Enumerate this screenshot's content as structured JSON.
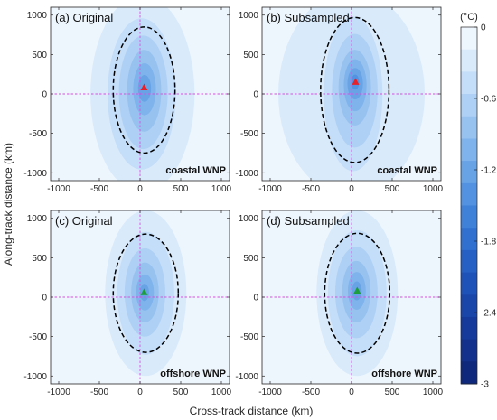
{
  "chart_data": {
    "type": "heatmap",
    "xlabel": "Cross-track distance (km)",
    "ylabel": "Along-track distance (km)",
    "xlim": [
      -1100,
      1100
    ],
    "ylim": [
      -1100,
      1100
    ],
    "xticks": [
      -1000,
      -500,
      0,
      500,
      1000
    ],
    "yticks": [
      -1000,
      -500,
      0,
      500,
      1000
    ],
    "colorbar": {
      "unit": "(°C)",
      "range": [
        -3,
        0
      ],
      "ticks": [
        0,
        -0.6,
        -1.2,
        -1.8,
        -2.4,
        -3
      ],
      "levels": [
        0,
        -0.2,
        -0.4,
        -0.6,
        -0.8,
        -1.0,
        -1.2,
        -1.4,
        -1.6,
        -1.8,
        -2.0,
        -2.2,
        -2.4,
        -2.6,
        -2.8,
        -3.0
      ],
      "colors": [
        "#eef6fd",
        "#d9eafb",
        "#c4ddf8",
        "#aed0f4",
        "#97c2f0",
        "#7fb3eb",
        "#68a3e6",
        "#5292e0",
        "#3f80d8",
        "#3170cf",
        "#2660c5",
        "#1f52b8",
        "#1a46aa",
        "#163a9b",
        "#12308c",
        "#0f287c"
      ]
    },
    "panels": [
      {
        "title": "(a) Original",
        "region": "coastal WNP",
        "center_marker": {
          "x": 50,
          "y": 80,
          "color": "#e8202a"
        },
        "contour_rings": [
          {
            "cx": 30,
            "cy": 0,
            "rx": 640,
            "ry": 1250,
            "level": -0.2
          },
          {
            "cx": 20,
            "cy": 0,
            "rx": 420,
            "ry": 960,
            "level": -0.4
          },
          {
            "cx": 40,
            "cy": 20,
            "rx": 300,
            "ry": 720,
            "level": -0.6
          },
          {
            "cx": 50,
            "cy": 40,
            "rx": 210,
            "ry": 520,
            "level": -0.8
          },
          {
            "cx": 55,
            "cy": 60,
            "rx": 140,
            "ry": 330,
            "level": -1.0
          },
          {
            "cx": 55,
            "cy": 70,
            "rx": 80,
            "ry": 170,
            "level": -1.2
          }
        ],
        "dashed_outline": {
          "cx": 50,
          "cy": 50,
          "rx": 380,
          "ry": 800
        }
      },
      {
        "title": "(b) Subsampled",
        "region": "coastal WNP",
        "center_marker": {
          "x": 50,
          "y": 150,
          "color": "#e8202a"
        },
        "contour_rings": [
          {
            "cx": 0,
            "cy": 0,
            "rx": 900,
            "ry": 1300,
            "level": -0.2
          },
          {
            "cx": 20,
            "cy": 0,
            "rx": 360,
            "ry": 980,
            "level": -0.4
          },
          {
            "cx": 40,
            "cy": 40,
            "rx": 280,
            "ry": 720,
            "level": -0.6
          },
          {
            "cx": 40,
            "cy": 80,
            "rx": 200,
            "ry": 480,
            "level": -0.8
          },
          {
            "cx": 45,
            "cy": 110,
            "rx": 140,
            "ry": 330,
            "level": -1.0
          },
          {
            "cx": 45,
            "cy": 130,
            "rx": 95,
            "ry": 200,
            "level": -1.2
          },
          {
            "cx": 45,
            "cy": 150,
            "rx": 50,
            "ry": 95,
            "level": -1.4
          }
        ],
        "dashed_outline": {
          "cx": 40,
          "cy": 50,
          "rx": 420,
          "ry": 920
        }
      },
      {
        "title": "(c) Original",
        "region": "offshore WNP",
        "center_marker": {
          "x": 50,
          "y": 60,
          "color": "#1e9e3c"
        },
        "contour_rings": [
          {
            "cx": 70,
            "cy": 50,
            "rx": 500,
            "ry": 1050,
            "level": -0.2
          },
          {
            "cx": 70,
            "cy": 50,
            "rx": 350,
            "ry": 780,
            "level": -0.4
          },
          {
            "cx": 60,
            "cy": 60,
            "rx": 250,
            "ry": 560,
            "level": -0.6
          },
          {
            "cx": 60,
            "cy": 60,
            "rx": 170,
            "ry": 380,
            "level": -0.8
          },
          {
            "cx": 60,
            "cy": 60,
            "rx": 110,
            "ry": 230,
            "level": -1.0
          },
          {
            "cx": 55,
            "cy": 60,
            "rx": 55,
            "ry": 110,
            "level": -1.2
          }
        ],
        "dashed_outline": {
          "cx": 70,
          "cy": 50,
          "rx": 400,
          "ry": 750
        }
      },
      {
        "title": "(d) Subsampled",
        "region": "offshore WNP",
        "center_marker": {
          "x": 70,
          "y": 80,
          "color": "#1e9e3c"
        },
        "contour_rings": [
          {
            "cx": 70,
            "cy": 50,
            "rx": 500,
            "ry": 1050,
            "level": -0.2
          },
          {
            "cx": 70,
            "cy": 50,
            "rx": 360,
            "ry": 800,
            "level": -0.4
          },
          {
            "cx": 60,
            "cy": 60,
            "rx": 260,
            "ry": 580,
            "level": -0.6
          },
          {
            "cx": 60,
            "cy": 70,
            "rx": 175,
            "ry": 390,
            "level": -0.8
          },
          {
            "cx": 65,
            "cy": 80,
            "rx": 110,
            "ry": 240,
            "level": -1.0
          },
          {
            "cx": 65,
            "cy": 80,
            "rx": 60,
            "ry": 120,
            "level": -1.2
          }
        ],
        "dashed_outline": {
          "cx": 70,
          "cy": 50,
          "rx": 400,
          "ry": 760
        }
      }
    ]
  }
}
